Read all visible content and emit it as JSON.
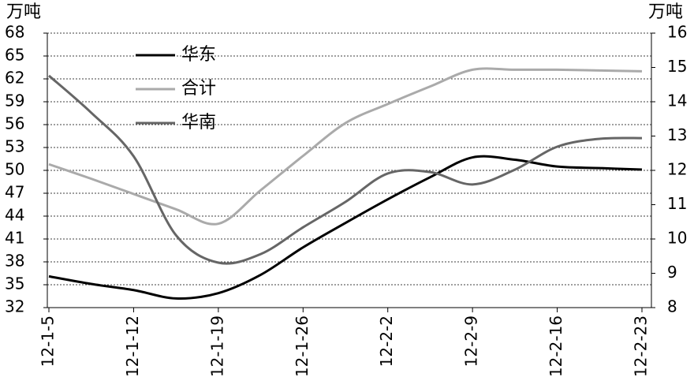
{
  "chart_data": {
    "type": "line",
    "y_label": "万吨",
    "y2_label": "万吨",
    "categories": [
      "12-1-5",
      null,
      "12-1-12",
      null,
      "12-1-19",
      null,
      "12-1-26",
      null,
      "12-2-2",
      null,
      "12-2-9",
      null,
      "12-2-16",
      null,
      "12-2-23"
    ],
    "series": [
      {
        "name": "华东",
        "color": "#000000",
        "values": [
          36.1,
          35.1,
          34.3,
          33.2,
          33.9,
          36.3,
          39.9,
          43.1,
          46.2,
          49.1,
          51.7,
          51.4,
          50.5,
          50.3,
          50.1
        ]
      },
      {
        "name": "合计",
        "color": "#aaaaaa",
        "values": [
          50.8,
          48.9,
          46.9,
          44.9,
          43.0,
          47.4,
          51.9,
          56.2,
          58.7,
          61.0,
          63.2,
          63.2,
          63.2,
          63.1,
          63.0
        ]
      },
      {
        "name": "华南",
        "color": "#666666",
        "axis": "y2",
        "values": [
          14.76,
          13.68,
          12.41,
          10.11,
          9.31,
          9.56,
          10.34,
          11.08,
          11.91,
          11.95,
          11.59,
          12.02,
          12.69,
          12.92,
          12.94
        ]
      }
    ],
    "ylim": [
      32,
      68
    ],
    "yticks": [
      32,
      35,
      38,
      41,
      44,
      47,
      50,
      53,
      56,
      59,
      62,
      65,
      68
    ],
    "y2lim": [
      8,
      16
    ],
    "y2ticks": [
      8,
      9,
      10,
      11,
      12,
      13,
      14,
      15,
      16
    ],
    "grid": true,
    "legend": "upper-left"
  }
}
